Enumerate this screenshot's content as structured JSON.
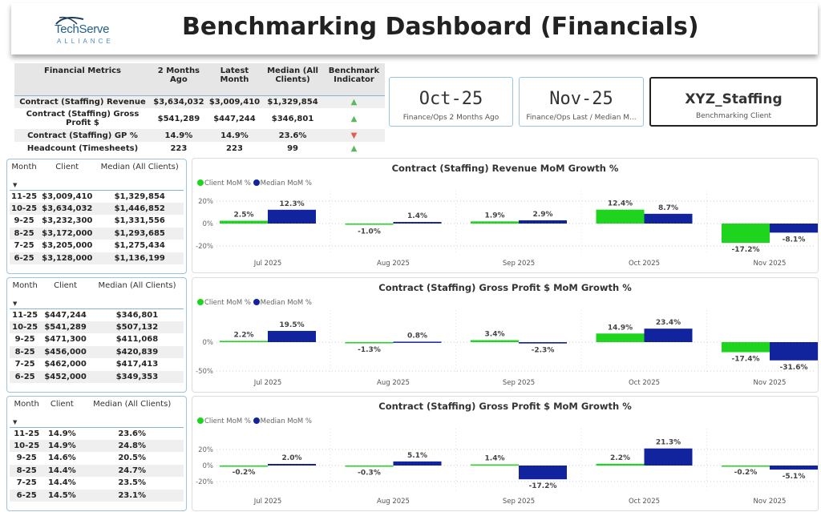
{
  "header": {
    "title": "Benchmarking Dashboard (Financials)",
    "logo_text": "TechServe",
    "logo_sub": "ALLIANCE"
  },
  "colors": {
    "client": "#1ed41e",
    "median": "#12239e",
    "up": "#5cb85c",
    "down": "#e05d4f"
  },
  "metrics": {
    "headers": [
      "Financial Metrics",
      "2 Months Ago",
      "Latest Month",
      "Median (All Clients)",
      "Benchmark Indicator"
    ],
    "rows": [
      {
        "name": "Contract (Staffing) Revenue",
        "ago": "$3,634,032",
        "latest": "$3,009,410",
        "median": "$1,329,854",
        "indicator": "up"
      },
      {
        "name": "Contract (Staffing) Gross Profit $",
        "ago": "$541,289",
        "latest": "$447,244",
        "median": "$346,801",
        "indicator": "up"
      },
      {
        "name": "Contract (Staffing) GP %",
        "ago": "14.9%",
        "latest": "14.9%",
        "median": "23.6%",
        "indicator": "down"
      },
      {
        "name": "Headcount (Timesheets)",
        "ago": "223",
        "latest": "223",
        "median": "99",
        "indicator": "up"
      }
    ]
  },
  "cards": [
    {
      "value": "Oct-25",
      "label": "Finance/Ops 2 Months Ago"
    },
    {
      "value": "Nov-25",
      "label": "Finance/Ops Last / Median M..."
    },
    {
      "value": "XYZ_Staffing",
      "label": "Benchmarking Client"
    }
  ],
  "tables": [
    {
      "headers": [
        "Month",
        "Client",
        "Median (All Clients)"
      ],
      "rows": [
        [
          "11-25",
          "$3,009,410",
          "$1,329,854"
        ],
        [
          "10-25",
          "$3,634,032",
          "$1,446,852"
        ],
        [
          "9-25",
          "$3,232,300",
          "$1,331,556"
        ],
        [
          "8-25",
          "$3,172,000",
          "$1,293,685"
        ],
        [
          "7-25",
          "$3,205,000",
          "$1,275,434"
        ],
        [
          "6-25",
          "$3,128,000",
          "$1,136,199"
        ]
      ]
    },
    {
      "headers": [
        "Month",
        "Client",
        "Median (All Clients)"
      ],
      "rows": [
        [
          "11-25",
          "$447,244",
          "$346,801"
        ],
        [
          "10-25",
          "$541,289",
          "$507,132"
        ],
        [
          "9-25",
          "$471,300",
          "$411,068"
        ],
        [
          "8-25",
          "$456,000",
          "$420,839"
        ],
        [
          "7-25",
          "$462,000",
          "$417,413"
        ],
        [
          "6-25",
          "$452,000",
          "$349,353"
        ]
      ]
    },
    {
      "headers": [
        "Month",
        "Client",
        "Median (All Clients)"
      ],
      "rows": [
        [
          "11-25",
          "14.9%",
          "23.6%"
        ],
        [
          "10-25",
          "14.9%",
          "24.8%"
        ],
        [
          "9-25",
          "14.6%",
          "20.5%"
        ],
        [
          "8-25",
          "14.4%",
          "24.7%"
        ],
        [
          "7-25",
          "14.4%",
          "23.5%"
        ],
        [
          "6-25",
          "14.5%",
          "23.1%"
        ]
      ]
    }
  ],
  "chart_data": [
    {
      "type": "bar",
      "title": "Contract (Staffing) Revenue MoM Growth %",
      "legend": [
        "Client MoM %",
        "Median MoM %"
      ],
      "categories": [
        "Jul 2025",
        "Aug 2025",
        "Sep 2025",
        "Oct 2025",
        "Nov 2025"
      ],
      "yticks": [
        "20%",
        "0%",
        "-20%"
      ],
      "ytick_values": [
        20,
        0,
        -20
      ],
      "series": [
        {
          "name": "Client MoM %",
          "values": [
            2.5,
            -1.0,
            1.9,
            12.4,
            -17.2
          ]
        },
        {
          "name": "Median MoM %",
          "values": [
            12.3,
            1.4,
            2.9,
            8.7,
            -8.1
          ]
        }
      ]
    },
    {
      "type": "bar",
      "title": "Contract (Staffing) Gross Profit $ MoM Growth %",
      "legend": [
        "Client MoM %",
        "Median MoM %"
      ],
      "categories": [
        "Jul 2025",
        "Aug 2025",
        "Sep 2025",
        "Oct 2025",
        "Nov 2025"
      ],
      "yticks": [
        "0%",
        "-50%"
      ],
      "ytick_values": [
        0,
        -50
      ],
      "series": [
        {
          "name": "Client MoM %",
          "values": [
            2.2,
            -1.3,
            3.4,
            14.9,
            -17.4
          ]
        },
        {
          "name": "Median MoM %",
          "values": [
            19.5,
            0.8,
            -2.3,
            23.4,
            -31.6
          ]
        }
      ]
    },
    {
      "type": "bar",
      "title": "Contract (Staffing) Gross Profit $ MoM Growth %",
      "legend": [
        "Client MoM %",
        "Median MoM %"
      ],
      "categories": [
        "Jul 2025",
        "Aug 2025",
        "Sep 2025",
        "Oct 2025",
        "Nov 2025"
      ],
      "yticks": [
        "20%",
        "0%",
        "-20%"
      ],
      "ytick_values": [
        20,
        0,
        -20
      ],
      "series": [
        {
          "name": "Client MoM %",
          "values": [
            -0.2,
            -0.3,
            1.4,
            2.2,
            -0.2
          ]
        },
        {
          "name": "Median MoM %",
          "values": [
            2.0,
            5.1,
            -17.2,
            21.3,
            -5.1
          ]
        }
      ]
    }
  ]
}
